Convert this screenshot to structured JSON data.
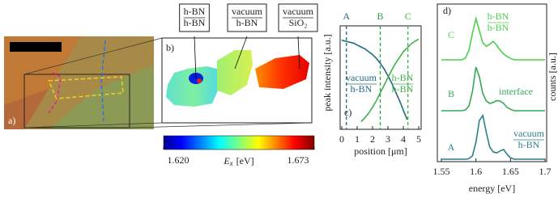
{
  "panel_a": {
    "label": "a)"
  },
  "panel_b": {
    "label": "b)",
    "callouts": [
      {
        "top": "h-BN",
        "bottom": "h-BN"
      },
      {
        "top": "vacuum",
        "bottom": "h-BN"
      },
      {
        "top": "vacuum",
        "bottom": "SiO₂"
      }
    ]
  },
  "colorbar": {
    "symbol": "E",
    "subscript": "x",
    "unit": "[eV]",
    "lim": [
      1.62,
      1.673
    ],
    "ticks": [
      {
        "value": 1.62,
        "label": "1.620"
      },
      {
        "value": 1.673,
        "label": "1.673"
      }
    ]
  },
  "chart_data": [
    {
      "type": "line",
      "panel_label": "c)",
      "x_label": "position [μm]",
      "y_label": "peak intensity [a.u.]",
      "x": [
        0,
        0.25,
        0.5,
        0.75,
        1,
        1.25,
        1.5,
        1.75,
        2,
        2.25,
        2.5,
        2.75,
        3,
        3.25,
        3.5,
        3.75,
        4,
        4.25,
        4.5,
        4.75,
        5
      ],
      "xlim": [
        0,
        5
      ],
      "xticks": [
        0,
        1,
        2,
        3,
        4,
        5
      ],
      "ylim": [
        -0.08,
        1
      ],
      "series": [
        {
          "label": {
            "top": "vacuum",
            "bottom": "h-BN"
          },
          "color": "#1f6a80",
          "values": [
            0.85,
            0.84,
            0.83,
            0.82,
            0.8,
            0.78,
            0.76,
            0.73,
            0.7,
            0.66,
            0.61,
            0.55,
            0.48,
            0.4,
            0.31,
            0.22,
            0.12,
            0.02,
            null,
            null,
            null
          ]
        },
        {
          "label": {
            "top": "h-BN",
            "bottom": "h-BN"
          },
          "color": "#3cb44b",
          "values": [
            null,
            null,
            null,
            null,
            null,
            0.0,
            0.04,
            0.09,
            0.15,
            0.22,
            0.3,
            0.38,
            0.46,
            0.54,
            0.61,
            0.67,
            0.73,
            0.77,
            0.81,
            0.84,
            0.86
          ]
        }
      ],
      "markers": [
        {
          "label": "A",
          "x": 0.3,
          "color": "#1f6a80"
        },
        {
          "label": "B",
          "x": 2.5,
          "color": "#2e9e46"
        },
        {
          "label": "C",
          "x": 4.3,
          "color": "#3cb44b"
        }
      ]
    },
    {
      "type": "line",
      "panel_label": "d)",
      "x_label": "energy [eV]",
      "y_label": "counts [a.u.]",
      "x": [
        1.55,
        1.555,
        1.56,
        1.565,
        1.57,
        1.575,
        1.58,
        1.585,
        1.59,
        1.595,
        1.6,
        1.605,
        1.61,
        1.615,
        1.62,
        1.625,
        1.63,
        1.635,
        1.64,
        1.645,
        1.65,
        1.655,
        1.66,
        1.665,
        1.67,
        1.675,
        1.68,
        1.685,
        1.69,
        1.695,
        1.7
      ],
      "xlim": [
        1.55,
        1.7
      ],
      "xticks": [
        1.55,
        1.6,
        1.65,
        1.7
      ],
      "ylim": [
        0,
        3.2
      ],
      "series": [
        {
          "name": "A",
          "color": "#2a7f8a",
          "values": [
            0.05,
            0.05,
            0.05,
            0.05,
            0.05,
            0.05,
            0.05,
            0.05,
            0.06,
            0.12,
            0.4,
            0.85,
            0.95,
            0.6,
            0.3,
            0.2,
            0.18,
            0.22,
            0.25,
            0.15,
            0.08,
            0.05,
            0.05,
            0.05,
            0.05,
            0.05,
            0.05,
            0.05,
            0.05,
            0.05,
            0.05
          ],
          "annotation": {
            "top": "vacuum",
            "bottom": "h-BN"
          }
        },
        {
          "name": "B",
          "color": "#35a855",
          "values": [
            1.05,
            1.05,
            1.05,
            1.05,
            1.05,
            1.05,
            1.05,
            1.07,
            1.15,
            1.45,
            1.95,
            1.75,
            1.4,
            1.25,
            1.2,
            1.22,
            1.26,
            1.25,
            1.2,
            1.12,
            1.08,
            1.05,
            1.05,
            1.05,
            1.05,
            1.05,
            1.05,
            1.05,
            1.05,
            1.05,
            1.05
          ],
          "annotation": "interface"
        },
        {
          "name": "C",
          "color": "#4cd04c",
          "values": [
            2.1,
            2.1,
            2.1,
            2.1,
            2.1,
            2.1,
            2.1,
            2.14,
            2.3,
            2.65,
            2.95,
            2.7,
            2.45,
            2.38,
            2.42,
            2.48,
            2.4,
            2.3,
            2.22,
            2.17,
            2.13,
            2.1,
            2.1,
            2.1,
            2.1,
            2.1,
            2.1,
            2.1,
            2.1,
            2.1,
            2.1
          ],
          "annotation": {
            "top": "h-BN",
            "bottom": "h-BN"
          }
        }
      ]
    }
  ]
}
